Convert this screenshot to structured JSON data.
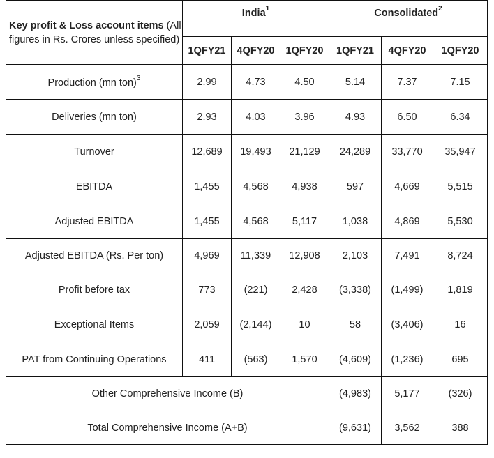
{
  "table": {
    "header_title_bold": "Key profit & Loss account items",
    "header_title_rest": " (All figures in Rs. Crores unless specified)",
    "groups": [
      {
        "label": "India",
        "note": "1"
      },
      {
        "label": "Consolidated",
        "note": "2"
      }
    ],
    "columns": [
      "1QFY21",
      "4QFY20",
      "1QFY20",
      "1QFY21",
      "4QFY20",
      "1QFY20"
    ],
    "rows": [
      {
        "label": "Production (mn ton)",
        "note": "3",
        "values": [
          "2.99",
          "4.73",
          "4.50",
          "5.14",
          "7.37",
          "7.15"
        ]
      },
      {
        "label": "Deliveries (mn ton)",
        "note": "",
        "values": [
          "2.93",
          "4.03",
          "3.96",
          "4.93",
          "6.50",
          "6.34"
        ]
      },
      {
        "label": "Turnover",
        "note": "",
        "values": [
          "12,689",
          "19,493",
          "21,129",
          "24,289",
          "33,770",
          "35,947"
        ]
      },
      {
        "label": "EBITDA",
        "note": "",
        "values": [
          "1,455",
          "4,568",
          "4,938",
          "597",
          "4,669",
          "5,515"
        ]
      },
      {
        "label": "Adjusted EBITDA",
        "note": "",
        "values": [
          "1,455",
          "4,568",
          "5,117",
          "1,038",
          "4,869",
          "5,530"
        ]
      },
      {
        "label": "Adjusted EBITDA (Rs. Per ton)",
        "note": "",
        "values": [
          "4,969",
          "11,339",
          "12,908",
          "2,103",
          "7,491",
          "8,724"
        ]
      },
      {
        "label": "Profit before tax",
        "note": "",
        "values": [
          "773",
          "(221)",
          "2,428",
          "(3,338)",
          "(1,499)",
          "1,819"
        ]
      },
      {
        "label": "Exceptional Items",
        "note": "",
        "values": [
          "2,059",
          "(2,144)",
          "10",
          "58",
          "(3,406)",
          "16"
        ]
      },
      {
        "label": "PAT from Continuing Operations",
        "note": "",
        "values": [
          "411",
          "(563)",
          "1,570",
          "(4,609)",
          "(1,236)",
          "695"
        ]
      }
    ],
    "merged_rows": [
      {
        "label": "Other Comprehensive Income (B)",
        "values": [
          "(4,983)",
          "5,177",
          "(326)"
        ]
      },
      {
        "label": "Total Comprehensive Income (A+B)",
        "values": [
          "(9,631)",
          "3,562",
          "388"
        ]
      }
    ]
  }
}
